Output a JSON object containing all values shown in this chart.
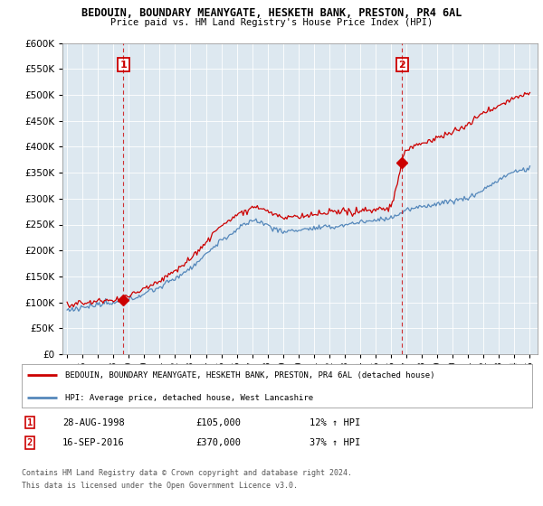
{
  "title": "BEDOUIN, BOUNDARY MEANYGATE, HESKETH BANK, PRESTON, PR4 6AL",
  "subtitle": "Price paid vs. HM Land Registry's House Price Index (HPI)",
  "legend_line1": "BEDOUIN, BOUNDARY MEANYGATE, HESKETH BANK, PRESTON, PR4 6AL (detached house)",
  "legend_line2": "HPI: Average price, detached house, West Lancashire",
  "annotation1_date": "28-AUG-1998",
  "annotation1_price": "£105,000",
  "annotation1_hpi": "12% ↑ HPI",
  "annotation2_date": "16-SEP-2016",
  "annotation2_price": "£370,000",
  "annotation2_hpi": "37% ↑ HPI",
  "footer": "Contains HM Land Registry data © Crown copyright and database right 2024.\nThis data is licensed under the Open Government Licence v3.0.",
  "red_color": "#cc0000",
  "blue_color": "#5588bb",
  "bg_color": "#dde8f0",
  "ylim": [
    0,
    600000
  ],
  "yticks": [
    0,
    50000,
    100000,
    150000,
    200000,
    250000,
    300000,
    350000,
    400000,
    450000,
    500000,
    550000,
    600000
  ],
  "x_start_year": 1995,
  "x_end_year": 2025,
  "purchase1_year": 1998.65,
  "purchase1_value": 105000,
  "purchase2_year": 2016.71,
  "purchase2_value": 370000,
  "vline1_year": 1998.65,
  "vline2_year": 2016.71,
  "hpi_seed_points": {
    "years": [
      1995,
      1997,
      1998,
      1999,
      2001,
      2003,
      2005,
      2007,
      2008,
      2009,
      2010,
      2012,
      2014,
      2016,
      2017,
      2019,
      2021,
      2022,
      2023,
      2024,
      2025
    ],
    "values": [
      85000,
      93000,
      97000,
      105000,
      130000,
      165000,
      220000,
      260000,
      250000,
      235000,
      240000,
      245000,
      255000,
      265000,
      280000,
      295000,
      305000,
      320000,
      340000,
      355000,
      360000
    ]
  },
  "red_seed_points": {
    "years": [
      1995,
      1997,
      1998,
      1998.65,
      1999,
      2001,
      2003,
      2005,
      2007,
      2008,
      2009,
      2010,
      2012,
      2014,
      2016,
      2016.71,
      2017,
      2019,
      2021,
      2022,
      2023,
      2024,
      2025
    ],
    "values": [
      95000,
      102000,
      103000,
      105000,
      112000,
      140000,
      182000,
      245000,
      283000,
      275000,
      258000,
      263000,
      268000,
      273000,
      280000,
      370000,
      395000,
      415000,
      440000,
      465000,
      480000,
      495000,
      505000
    ]
  }
}
